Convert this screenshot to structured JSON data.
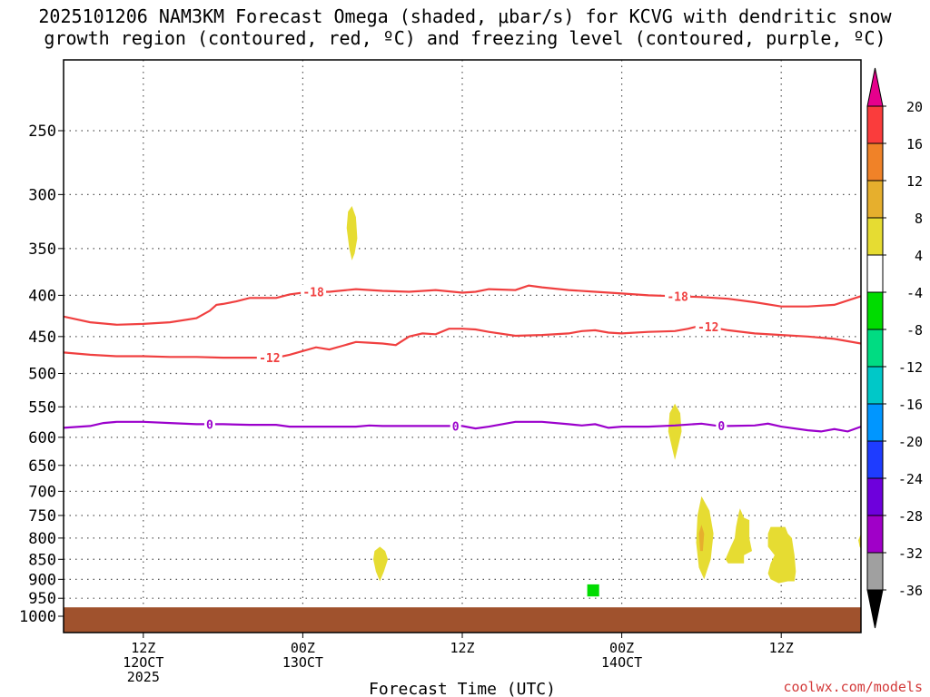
{
  "title": {
    "line1": "2025101206 NAM3KM Forecast Omega (shaded, μbar/s) for KCVG with dendritic snow",
    "line2": "growth region (contoured, red, ºC) and freezing level (contoured, purple, ºC)"
  },
  "credit": "coolwx.com/models",
  "chart_data": {
    "type": "heatmap",
    "xlabel": "Forecast Time (UTC)",
    "ylabel": "",
    "x_unit": "forecast hour from 2025-10-12 06Z",
    "xlim": [
      0,
      60
    ],
    "ylim_hPa": [
      1000,
      200
    ],
    "y_scale": "log",
    "grid": true,
    "x_ticks": [
      {
        "x": 6,
        "lines": [
          "12Z",
          "12OCT",
          "2025"
        ]
      },
      {
        "x": 18,
        "lines": [
          "00Z",
          "13OCT"
        ]
      },
      {
        "x": 30,
        "lines": [
          "12Z"
        ]
      },
      {
        "x": 42,
        "lines": [
          "00Z",
          "14OCT"
        ]
      },
      {
        "x": 54,
        "lines": [
          "12Z"
        ]
      }
    ],
    "y_ticks": [
      250,
      300,
      350,
      400,
      450,
      500,
      550,
      600,
      650,
      700,
      750,
      800,
      850,
      900,
      950,
      1000
    ],
    "colorbar": {
      "unit": "μbar/s",
      "levels": [
        -36,
        -32,
        -28,
        -24,
        -20,
        -16,
        -12,
        -8,
        -4,
        4,
        8,
        12,
        16,
        20
      ],
      "level_labels": [
        "-36",
        "-32",
        "-28",
        "-24",
        "-20",
        "-16",
        "-12",
        "-8",
        "-4",
        "4",
        "8",
        "12",
        "16",
        "20"
      ],
      "colors": [
        "#000000",
        "#a0a0a0",
        "#a000c8",
        "#6e00dc",
        "#1e3cff",
        "#0096ff",
        "#00c8c8",
        "#00dc82",
        "#00dc00",
        "#ffffff",
        "#e6dc32",
        "#e6af2d",
        "#f08228",
        "#fa3c3c",
        "#e6008c"
      ]
    },
    "contours": [
      {
        "name": "-18",
        "color": "#f04040",
        "label_at": [
          [
            18.8,
            "-18"
          ],
          [
            46.2,
            "-18"
          ]
        ],
        "points": [
          [
            0,
            425
          ],
          [
            2,
            432
          ],
          [
            4,
            435
          ],
          [
            6,
            434
          ],
          [
            8,
            432
          ],
          [
            10,
            427
          ],
          [
            11,
            418
          ],
          [
            11.5,
            411
          ],
          [
            12,
            410
          ],
          [
            13,
            407
          ],
          [
            14,
            403
          ],
          [
            16,
            403
          ],
          [
            17,
            399
          ],
          [
            18.5,
            396
          ],
          [
            20,
            396
          ],
          [
            22,
            393
          ],
          [
            24,
            395
          ],
          [
            26,
            396
          ],
          [
            28,
            394
          ],
          [
            30,
            397
          ],
          [
            31,
            396
          ],
          [
            32,
            393
          ],
          [
            34,
            394
          ],
          [
            35,
            389
          ],
          [
            36,
            391
          ],
          [
            38,
            394
          ],
          [
            40,
            396
          ],
          [
            42,
            398
          ],
          [
            44,
            400
          ],
          [
            46,
            401
          ],
          [
            48,
            402
          ],
          [
            50,
            404
          ],
          [
            52,
            408
          ],
          [
            54,
            413
          ],
          [
            56,
            413
          ],
          [
            58,
            411
          ],
          [
            60,
            401
          ]
        ]
      },
      {
        "name": "-12",
        "color": "#f04040",
        "label_at": [
          [
            15.5,
            "-12"
          ],
          [
            48.5,
            "-12"
          ]
        ],
        "points": [
          [
            0,
            471
          ],
          [
            2,
            474
          ],
          [
            4,
            476
          ],
          [
            6,
            476
          ],
          [
            8,
            477
          ],
          [
            10,
            477
          ],
          [
            12,
            478
          ],
          [
            14,
            478
          ],
          [
            15,
            478
          ],
          [
            16,
            478
          ],
          [
            17,
            474
          ],
          [
            18,
            469
          ],
          [
            19,
            464
          ],
          [
            20,
            467
          ],
          [
            21,
            462
          ],
          [
            22,
            457
          ],
          [
            23,
            458
          ],
          [
            24,
            459
          ],
          [
            25,
            461
          ],
          [
            26,
            450
          ],
          [
            27,
            446
          ],
          [
            28,
            447
          ],
          [
            29,
            440
          ],
          [
            30,
            440
          ],
          [
            31,
            441
          ],
          [
            32,
            444
          ],
          [
            34,
            449
          ],
          [
            36,
            448
          ],
          [
            38,
            446
          ],
          [
            39,
            443
          ],
          [
            40,
            442
          ],
          [
            41,
            445
          ],
          [
            42,
            446
          ],
          [
            44,
            444
          ],
          [
            46,
            443
          ],
          [
            47,
            440
          ],
          [
            48,
            436
          ],
          [
            50,
            442
          ],
          [
            52,
            446
          ],
          [
            54,
            448
          ],
          [
            56,
            450
          ],
          [
            58,
            453
          ],
          [
            60,
            459
          ]
        ]
      },
      {
        "name": "0",
        "color": "#9b00cc",
        "label_at": [
          [
            11,
            "0"
          ],
          [
            29.5,
            "0"
          ],
          [
            49.5,
            "0"
          ]
        ],
        "points": [
          [
            0,
            584
          ],
          [
            2,
            581
          ],
          [
            3,
            576
          ],
          [
            4,
            574
          ],
          [
            6,
            574
          ],
          [
            8,
            576
          ],
          [
            10,
            578
          ],
          [
            12,
            578
          ],
          [
            14,
            579
          ],
          [
            16,
            579
          ],
          [
            17,
            582
          ],
          [
            18,
            582
          ],
          [
            19,
            582
          ],
          [
            20,
            582
          ],
          [
            22,
            582
          ],
          [
            23,
            580
          ],
          [
            24,
            581
          ],
          [
            26,
            581
          ],
          [
            28,
            581
          ],
          [
            30,
            581
          ],
          [
            31,
            585
          ],
          [
            32,
            582
          ],
          [
            33,
            578
          ],
          [
            34,
            574
          ],
          [
            36,
            574
          ],
          [
            38,
            578
          ],
          [
            39,
            580
          ],
          [
            40,
            578
          ],
          [
            41,
            584
          ],
          [
            42,
            582
          ],
          [
            44,
            582
          ],
          [
            46,
            580
          ],
          [
            48,
            577
          ],
          [
            49,
            580
          ],
          [
            50,
            581
          ],
          [
            52,
            580
          ],
          [
            53,
            577
          ],
          [
            54,
            582
          ],
          [
            56,
            588
          ],
          [
            57,
            590
          ],
          [
            58,
            586
          ],
          [
            59,
            590
          ],
          [
            60,
            582
          ]
        ]
      }
    ],
    "shaded_regions": [
      {
        "level": "4 to 8",
        "color": "#e6dc32",
        "points": [
          [
            21.7,
            310
          ],
          [
            22.0,
            320
          ],
          [
            22.1,
            340
          ],
          [
            21.9,
            355
          ],
          [
            21.7,
            362
          ],
          [
            21.5,
            350
          ],
          [
            21.3,
            330
          ],
          [
            21.4,
            315
          ]
        ]
      },
      {
        "level": "4 to 8",
        "color": "#e6dc32",
        "points": [
          [
            23.8,
            820
          ],
          [
            24.2,
            830
          ],
          [
            24.4,
            850
          ],
          [
            24.1,
            880
          ],
          [
            23.8,
            905
          ],
          [
            23.5,
            880
          ],
          [
            23.3,
            850
          ],
          [
            23.4,
            830
          ]
        ]
      },
      {
        "level": "4 to 8",
        "color": "#e6dc32",
        "points": [
          [
            46.0,
            545
          ],
          [
            46.4,
            560
          ],
          [
            46.5,
            590
          ],
          [
            46.2,
            620
          ],
          [
            46.0,
            640
          ],
          [
            45.8,
            620
          ],
          [
            45.5,
            590
          ],
          [
            45.6,
            560
          ]
        ]
      },
      {
        "level": "4 to 8",
        "color": "#e6dc32",
        "points": [
          [
            48.0,
            710
          ],
          [
            48.6,
            740
          ],
          [
            48.9,
            790
          ],
          [
            48.7,
            850
          ],
          [
            48.2,
            900
          ],
          [
            47.8,
            870
          ],
          [
            47.6,
            810
          ],
          [
            47.7,
            750
          ]
        ]
      },
      {
        "level": "4 to 8",
        "color": "#e6dc32",
        "points": [
          [
            50.9,
            735
          ],
          [
            51.2,
            755
          ],
          [
            51.6,
            760
          ],
          [
            51.6,
            800
          ],
          [
            51.8,
            830
          ],
          [
            51.2,
            840
          ],
          [
            51.2,
            860
          ],
          [
            50.0,
            860
          ],
          [
            49.8,
            850
          ],
          [
            50.2,
            820
          ],
          [
            50.5,
            800
          ],
          [
            50.6,
            775
          ],
          [
            50.8,
            745
          ]
        ]
      },
      {
        "level": "4 to 8",
        "color": "#e6dc32",
        "points": [
          [
            53.2,
            775
          ],
          [
            54.3,
            775
          ],
          [
            54.5,
            790
          ],
          [
            54.8,
            800
          ],
          [
            55.0,
            840
          ],
          [
            55.1,
            880
          ],
          [
            55.0,
            905
          ],
          [
            54.5,
            905
          ],
          [
            53.8,
            910
          ],
          [
            53.2,
            900
          ],
          [
            53.0,
            885
          ],
          [
            53.2,
            860
          ],
          [
            53.5,
            840
          ],
          [
            53.0,
            820
          ],
          [
            53.0,
            790
          ]
        ]
      },
      {
        "level": "4 to 8",
        "color": "#e6dc32",
        "points": [
          [
            60,
            790
          ],
          [
            59.8,
            805
          ],
          [
            59.9,
            820
          ],
          [
            60,
            825
          ]
        ]
      },
      {
        "level": "8 to 12",
        "color": "#e6af2d",
        "points": [
          [
            48.0,
            770
          ],
          [
            48.2,
            790
          ],
          [
            48.1,
            830
          ],
          [
            47.9,
            830
          ],
          [
            47.8,
            790
          ]
        ]
      },
      {
        "level": "-8 to -4",
        "color": "#00dc00",
        "points": [
          [
            39.4,
            913
          ],
          [
            40.3,
            913
          ],
          [
            40.3,
            945
          ],
          [
            39.4,
            945
          ]
        ]
      }
    ],
    "terrain": {
      "color": "#a0522d",
      "surface_hPa": 980
    }
  }
}
